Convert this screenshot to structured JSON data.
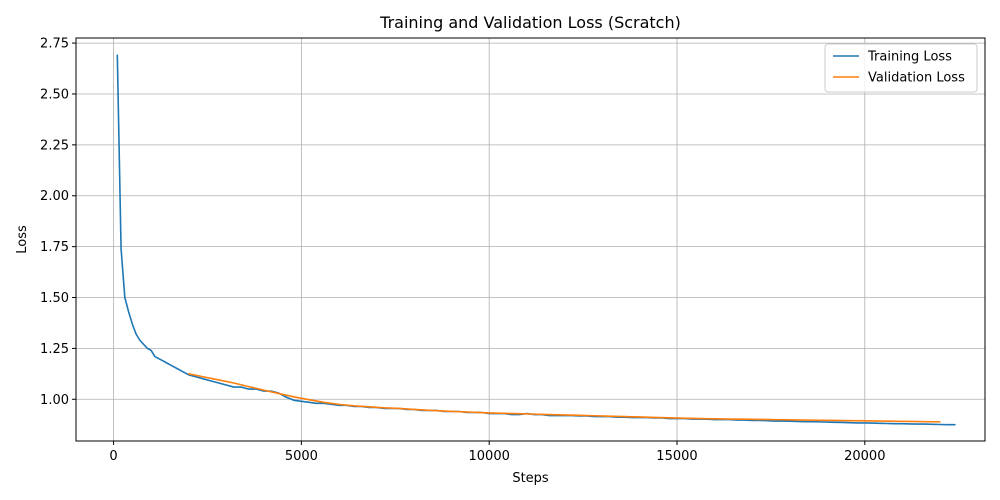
{
  "chart_data": {
    "type": "line",
    "title": "Training and Validation Loss (Scratch)",
    "xlabel": "Steps",
    "ylabel": "Loss",
    "xlim": [
      -1000,
      23200
    ],
    "ylim": [
      0.795,
      2.775
    ],
    "xticks": [
      0,
      5000,
      10000,
      15000,
      20000
    ],
    "yticks": [
      1.0,
      1.25,
      1.5,
      1.75,
      2.0,
      2.25,
      2.5,
      2.75
    ],
    "xtick_labels": [
      "0",
      "5000",
      "10000",
      "15000",
      "20000"
    ],
    "ytick_labels": [
      "1.00",
      "1.25",
      "1.50",
      "1.75",
      "2.00",
      "2.25",
      "2.50",
      "2.75"
    ],
    "grid": true,
    "legend_position": "top-right",
    "series": [
      {
        "name": "Training Loss",
        "color": "#1f77b4",
        "x": [
          100,
          200,
          300,
          400,
          500,
          600,
          700,
          800,
          900,
          1000,
          1100,
          1200,
          1300,
          1400,
          1500,
          1600,
          1700,
          1800,
          1900,
          2000,
          2200,
          2400,
          2600,
          2800,
          3000,
          3200,
          3400,
          3600,
          3800,
          4000,
          4200,
          4400,
          4600,
          4800,
          5000,
          5200,
          5400,
          5600,
          5800,
          6000,
          6200,
          6400,
          6600,
          6800,
          7000,
          7200,
          7400,
          7600,
          7800,
          8000,
          8200,
          8400,
          8600,
          8800,
          9000,
          9200,
          9400,
          9600,
          9800,
          10000,
          10200,
          10400,
          10600,
          10800,
          11000,
          11200,
          11400,
          11600,
          11800,
          12000,
          12200,
          12400,
          12600,
          12800,
          13000,
          13200,
          13400,
          13600,
          13800,
          14000,
          14200,
          14400,
          14600,
          14800,
          15000,
          15200,
          15400,
          15600,
          15800,
          16000,
          16200,
          16400,
          16600,
          16800,
          17000,
          17200,
          17400,
          17600,
          17800,
          18000,
          18200,
          18400,
          18600,
          18800,
          19000,
          19200,
          19400,
          19600,
          19800,
          20000,
          20200,
          20400,
          20600,
          20800,
          21000,
          21200,
          21400,
          21600,
          21800,
          22000,
          22200,
          22400
        ],
        "y": [
          2.69,
          1.74,
          1.5,
          1.43,
          1.37,
          1.32,
          1.29,
          1.27,
          1.25,
          1.24,
          1.21,
          1.2,
          1.19,
          1.18,
          1.17,
          1.16,
          1.15,
          1.14,
          1.13,
          1.12,
          1.11,
          1.1,
          1.09,
          1.08,
          1.07,
          1.06,
          1.06,
          1.05,
          1.05,
          1.04,
          1.04,
          1.03,
          1.01,
          0.995,
          0.99,
          0.985,
          0.98,
          0.98,
          0.975,
          0.97,
          0.97,
          0.965,
          0.965,
          0.96,
          0.96,
          0.955,
          0.955,
          0.955,
          0.95,
          0.95,
          0.945,
          0.945,
          0.945,
          0.94,
          0.94,
          0.94,
          0.935,
          0.935,
          0.935,
          0.93,
          0.93,
          0.93,
          0.925,
          0.925,
          0.93,
          0.925,
          0.925,
          0.92,
          0.92,
          0.92,
          0.92,
          0.918,
          0.918,
          0.915,
          0.915,
          0.915,
          0.912,
          0.912,
          0.91,
          0.91,
          0.91,
          0.908,
          0.908,
          0.905,
          0.905,
          0.905,
          0.903,
          0.903,
          0.902,
          0.9,
          0.9,
          0.9,
          0.898,
          0.898,
          0.896,
          0.896,
          0.895,
          0.893,
          0.893,
          0.892,
          0.891,
          0.89,
          0.89,
          0.889,
          0.888,
          0.887,
          0.886,
          0.885,
          0.884,
          0.884,
          0.883,
          0.882,
          0.881,
          0.88,
          0.88,
          0.879,
          0.878,
          0.878,
          0.877,
          0.876,
          0.875,
          0.875
        ]
      },
      {
        "name": "Validation Loss",
        "color": "#ff7f0e",
        "x": [
          2000,
          2400,
          2800,
          3200,
          3600,
          4000,
          4400,
          4800,
          5200,
          5600,
          6000,
          6400,
          6800,
          7200,
          7600,
          8000,
          8400,
          8800,
          9200,
          9600,
          10000,
          10400,
          10800,
          11200,
          11600,
          12000,
          12400,
          12800,
          13200,
          13600,
          14000,
          14400,
          14800,
          15200,
          15600,
          16000,
          16400,
          16800,
          17200,
          17600,
          18000,
          18400,
          18800,
          19200,
          19600,
          20000,
          20400,
          20800,
          21200,
          21600,
          22000
        ],
        "y": [
          1.125,
          1.11,
          1.095,
          1.08,
          1.062,
          1.045,
          1.028,
          1.012,
          0.998,
          0.985,
          0.975,
          0.968,
          0.963,
          0.958,
          0.955,
          0.95,
          0.946,
          0.942,
          0.939,
          0.936,
          0.933,
          0.931,
          0.929,
          0.927,
          0.925,
          0.923,
          0.921,
          0.919,
          0.917,
          0.915,
          0.913,
          0.911,
          0.909,
          0.907,
          0.905,
          0.904,
          0.903,
          0.902,
          0.901,
          0.9,
          0.899,
          0.898,
          0.897,
          0.896,
          0.895,
          0.894,
          0.893,
          0.892,
          0.891,
          0.89,
          0.889
        ]
      }
    ]
  }
}
